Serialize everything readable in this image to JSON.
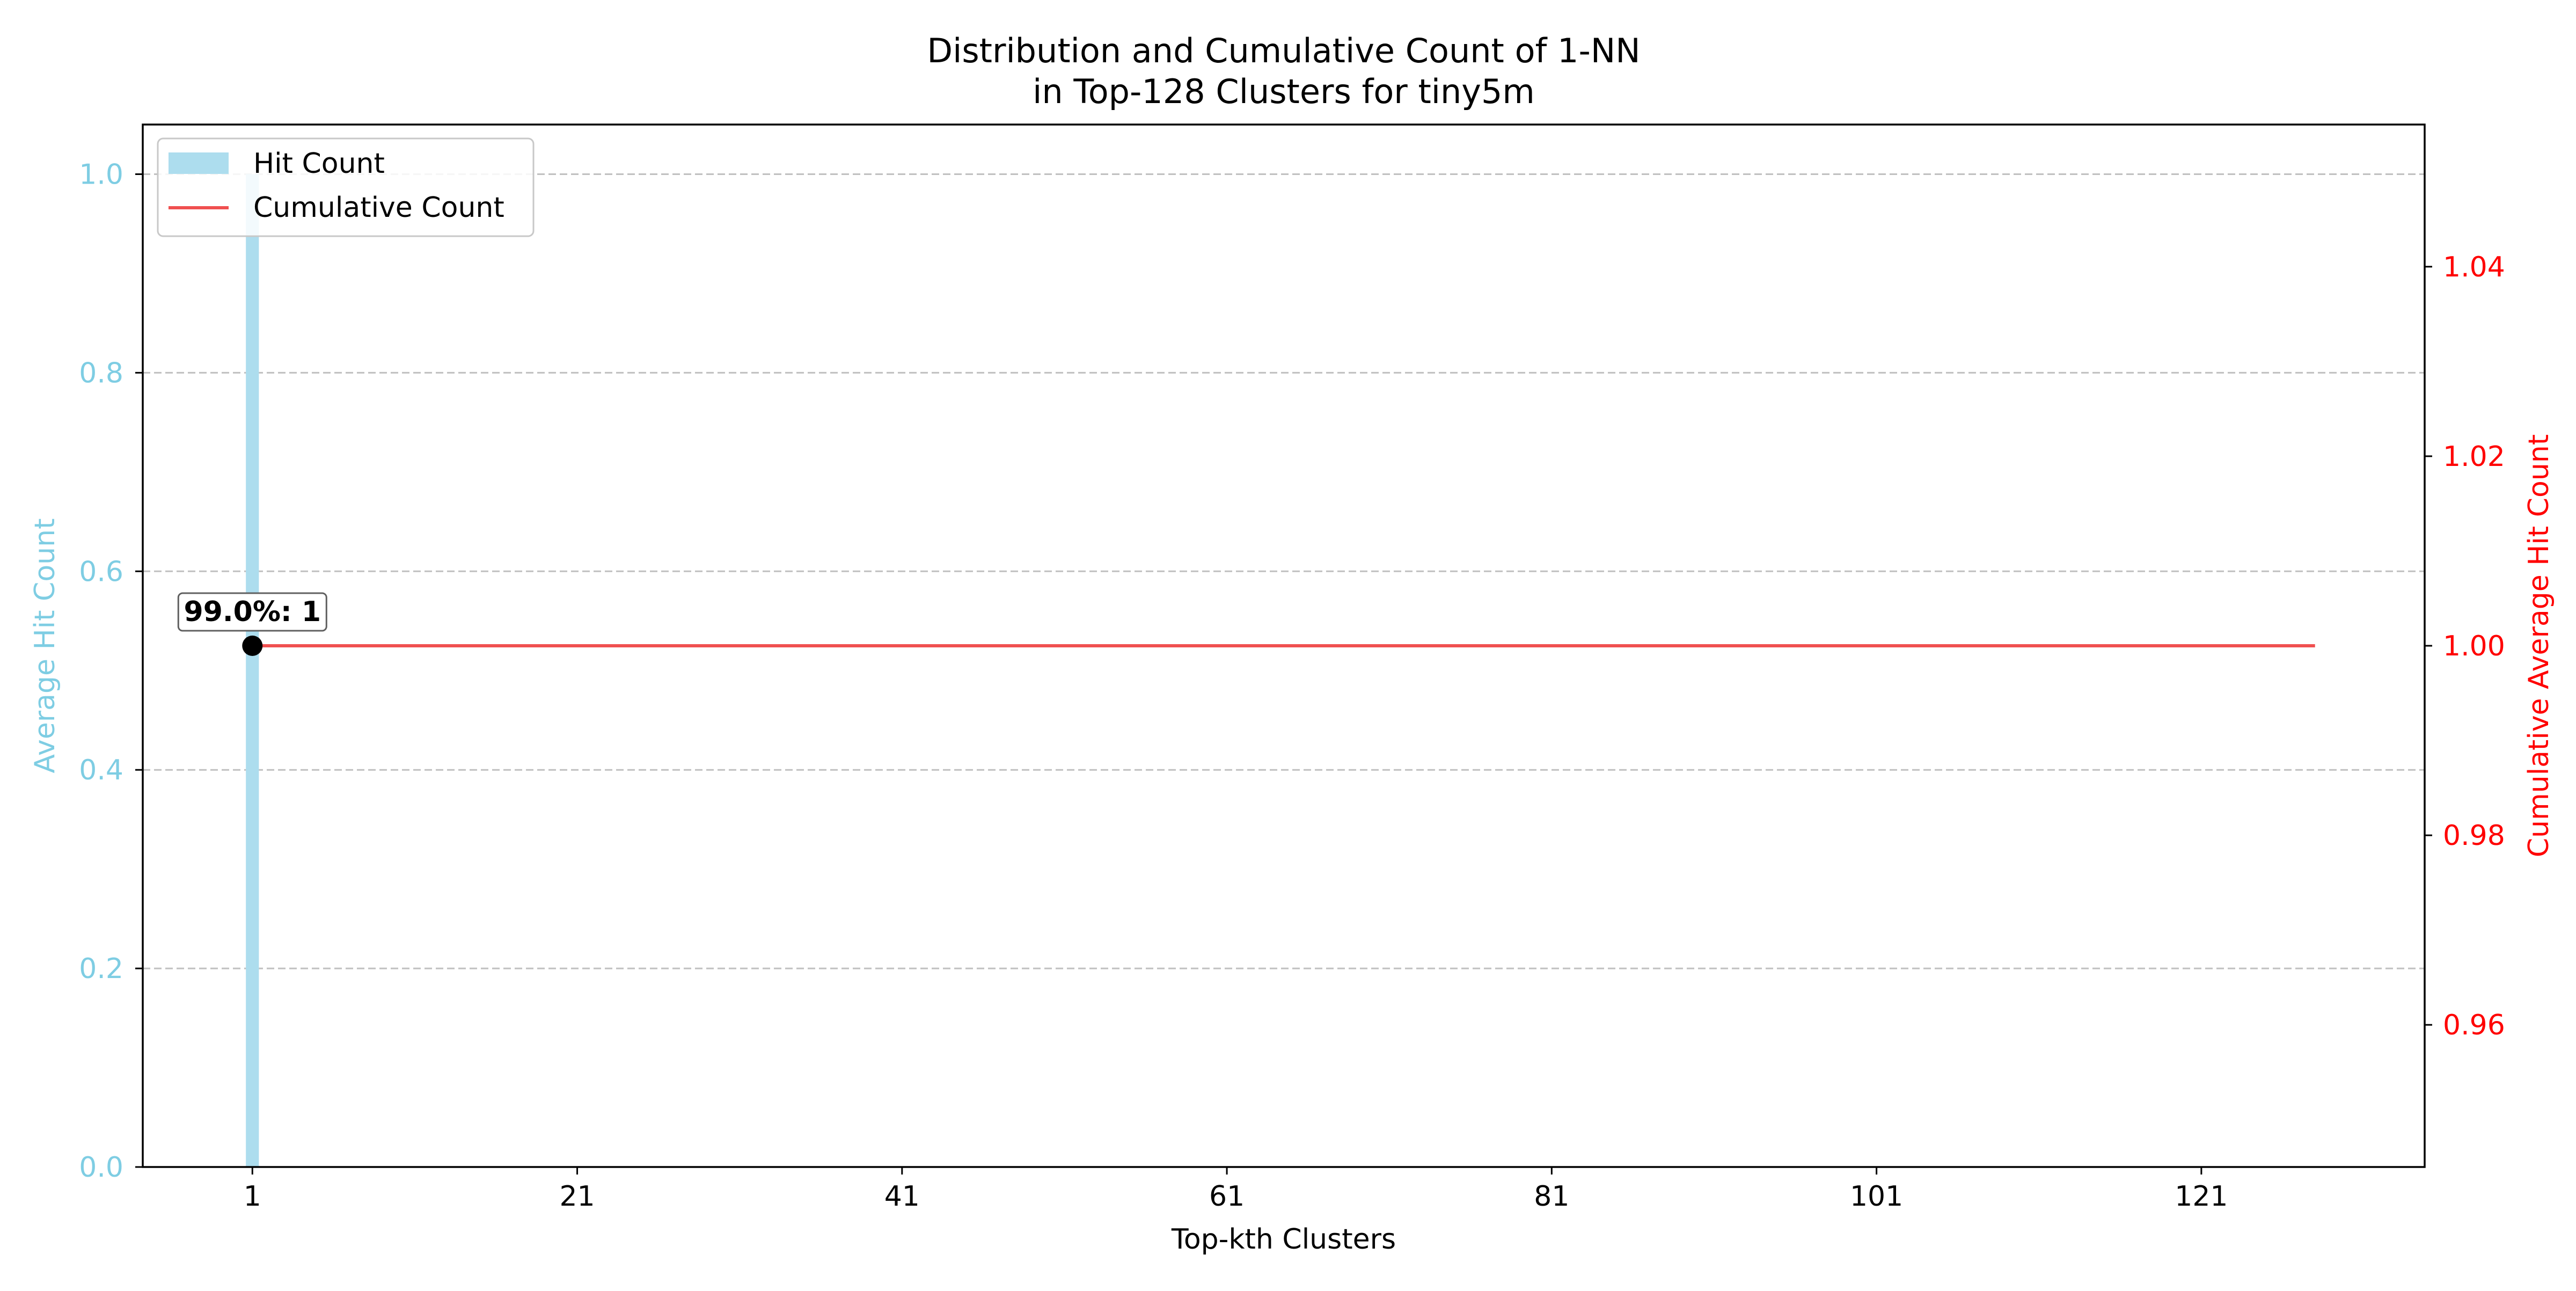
{
  "chart_data": {
    "type": "bar+line",
    "title_line1": "Distribution and Cumulative Count of 1-NN",
    "title_line2": "in Top-128 Clusters for tiny5m",
    "xlabel": "Top-kth Clusters",
    "ylabel_left": "Average Hit Count",
    "ylabel_right": "Cumulative Average Hit Count",
    "xlim": [
      -5.75,
      134.75
    ],
    "ylim_left": [
      0.0,
      1.05
    ],
    "ylim_right": [
      0.945,
      1.055
    ],
    "x_ticks": [
      1,
      21,
      41,
      61,
      81,
      101,
      121
    ],
    "x_tick_labels": [
      "1",
      "21",
      "41",
      "61",
      "81",
      "101",
      "121"
    ],
    "y_left_ticks": [
      0.0,
      0.2,
      0.4,
      0.6,
      0.8,
      1.0
    ],
    "y_left_tick_labels": [
      "0.0",
      "0.2",
      "0.4",
      "0.6",
      "0.8",
      "1.0"
    ],
    "y_right_ticks": [
      0.96,
      0.98,
      1.0,
      1.02,
      1.04
    ],
    "y_right_tick_labels": [
      "0.96",
      "0.98",
      "1.00",
      "1.02",
      "1.04"
    ],
    "grid": "horizontal dashed (left axis)",
    "legend_position": "top-left",
    "series": [
      {
        "name": "Hit Count",
        "type": "bar",
        "axis": "left",
        "color": "#ADDDEE",
        "x": [
          1
        ],
        "values": [
          1.0
        ]
      },
      {
        "name": "Cumulative Count",
        "type": "line",
        "axis": "right",
        "color": "#F05050",
        "x": [
          1,
          128
        ],
        "values": [
          1.0,
          1.0
        ]
      }
    ],
    "annotations": [
      {
        "x": 1,
        "y_right": 1.0,
        "text": "99.0%: 1",
        "marker_color": "#000000"
      }
    ],
    "colors": {
      "left_axis": "#7ECDE3",
      "right_axis": "#FF0000",
      "grid": "#C0C0C0",
      "text": "#000000"
    }
  }
}
